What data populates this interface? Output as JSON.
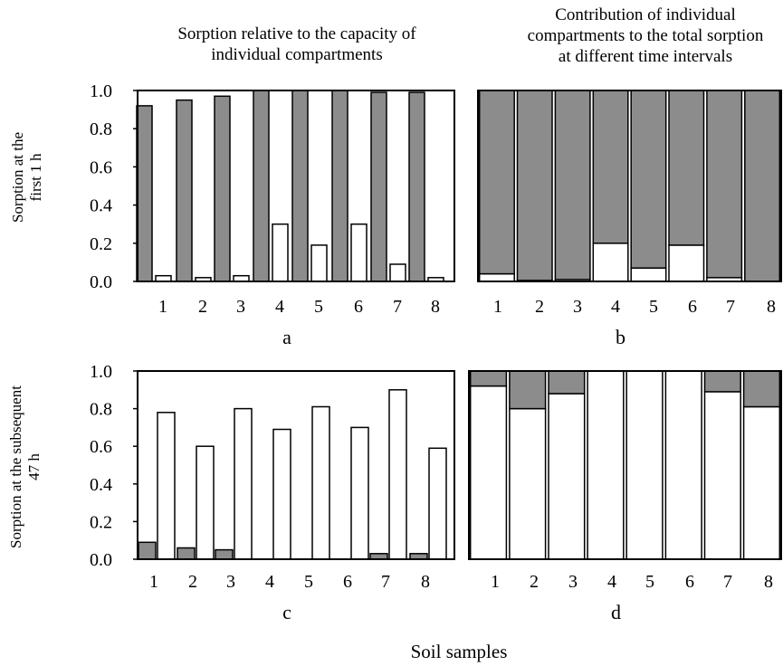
{
  "column_titles": {
    "left": [
      "Sorption relative to the capacity of",
      "individual compartments"
    ],
    "right": [
      "Contribution of individual",
      "compartments to the total sorption",
      "at different time intervals"
    ]
  },
  "row_labels": {
    "top": [
      "Sorption at the",
      "first 1 h"
    ],
    "bottom": [
      "Sorption at the subsequent",
      "47 h"
    ]
  },
  "x_label": "Soil samples",
  "colors": {
    "gray": "#8c8c8c",
    "white": "#ffffff"
  },
  "chart_data": [
    {
      "panel": "a",
      "type": "bar",
      "categories": [
        "1",
        "2",
        "3",
        "4",
        "5",
        "6",
        "7",
        "8"
      ],
      "ylim": [
        0,
        1.0
      ],
      "yticks": [
        "0.0",
        "0.2",
        "0.4",
        "0.6",
        "0.8",
        "1.0"
      ],
      "series": [
        {
          "color": "gray",
          "values": [
            0.92,
            0.95,
            0.97,
            1.0,
            1.0,
            1.0,
            0.99,
            0.99
          ]
        },
        {
          "color": "white",
          "values": [
            0.03,
            0.02,
            0.03,
            0.3,
            0.19,
            0.3,
            0.09,
            0.02
          ]
        }
      ]
    },
    {
      "panel": "b",
      "type": "bar",
      "stacked": true,
      "categories": [
        "1",
        "2",
        "3",
        "4",
        "5",
        "6",
        "7",
        "8"
      ],
      "ylim": [
        0,
        1.0
      ],
      "series": [
        {
          "color": "white",
          "values": [
            0.04,
            0.005,
            0.01,
            0.2,
            0.07,
            0.19,
            0.02,
            0.0
          ]
        },
        {
          "color": "gray",
          "values": [
            0.96,
            0.995,
            0.99,
            0.8,
            0.93,
            0.81,
            0.98,
            1.0
          ]
        }
      ]
    },
    {
      "panel": "c",
      "type": "bar",
      "categories": [
        "1",
        "2",
        "3",
        "4",
        "5",
        "6",
        "7",
        "8"
      ],
      "ylim": [
        0,
        1.0
      ],
      "yticks": [
        "0.0",
        "0.2",
        "0.4",
        "0.6",
        "0.8",
        "1.0"
      ],
      "series": [
        {
          "color": "gray",
          "values": [
            0.09,
            0.06,
            0.05,
            0.0,
            0.0,
            0.0,
            0.03,
            0.03
          ]
        },
        {
          "color": "white",
          "values": [
            0.78,
            0.6,
            0.8,
            0.69,
            0.81,
            0.7,
            0.9,
            0.59
          ]
        }
      ]
    },
    {
      "panel": "d",
      "type": "bar",
      "stacked": true,
      "categories": [
        "1",
        "2",
        "3",
        "4",
        "5",
        "6",
        "7",
        "8"
      ],
      "ylim": [
        0,
        1.0
      ],
      "series": [
        {
          "color": "white",
          "values": [
            0.92,
            0.8,
            0.88,
            1.0,
            1.0,
            1.0,
            0.89,
            0.81
          ]
        },
        {
          "color": "gray",
          "values": [
            0.08,
            0.2,
            0.12,
            0.0,
            0.0,
            0.0,
            0.11,
            0.19
          ]
        }
      ]
    }
  ]
}
